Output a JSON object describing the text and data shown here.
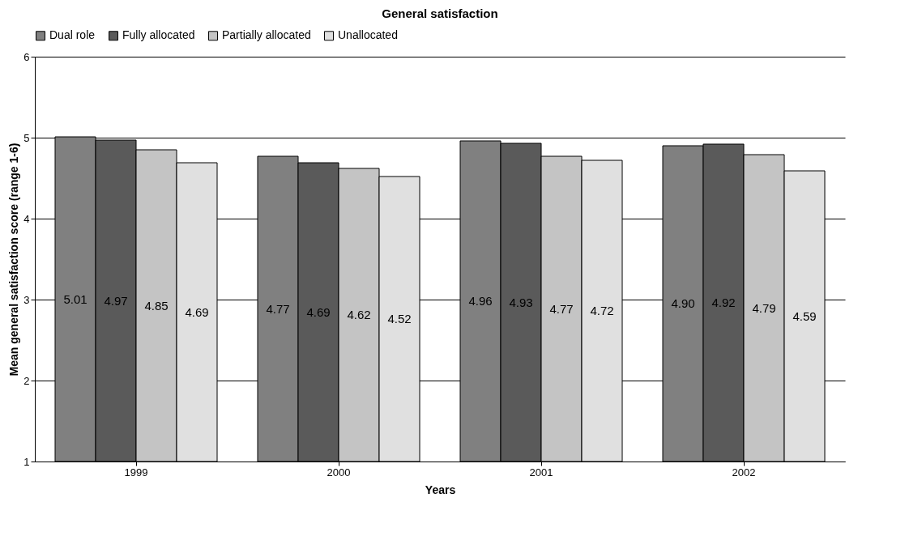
{
  "chart_data": {
    "type": "bar",
    "title": "General satisfaction",
    "xlabel": "Years",
    "ylabel": "Mean general satisfaction score (range 1-6)",
    "categories": [
      "1999",
      "2000",
      "2001",
      "2002"
    ],
    "series": [
      {
        "name": "Dual role",
        "color": "#808080",
        "values": [
          5.01,
          4.77,
          4.96,
          4.9
        ],
        "value_labels": [
          "5.01",
          "4.77",
          "4.96",
          "4.90"
        ]
      },
      {
        "name": "Fully allocated",
        "color": "#5a5a5a",
        "values": [
          4.97,
          4.69,
          4.93,
          4.92
        ],
        "value_labels": [
          "4.97",
          "4.69",
          "4.93",
          "4.92"
        ]
      },
      {
        "name": "Partially allocated",
        "color": "#c4c4c4",
        "values": [
          4.85,
          4.62,
          4.77,
          4.79
        ],
        "value_labels": [
          "4.85",
          "4.62",
          "4.77",
          "4.79"
        ]
      },
      {
        "name": "Unallocated",
        "color": "#e0e0e0",
        "values": [
          4.69,
          4.52,
          4.72,
          4.59
        ],
        "value_labels": [
          "4.69",
          "4.52",
          "4.72",
          "4.59"
        ]
      }
    ],
    "ylim": [
      1,
      6
    ],
    "yticks": [
      1,
      2,
      3,
      4,
      5,
      6
    ],
    "grid": "y",
    "legend": "top"
  }
}
